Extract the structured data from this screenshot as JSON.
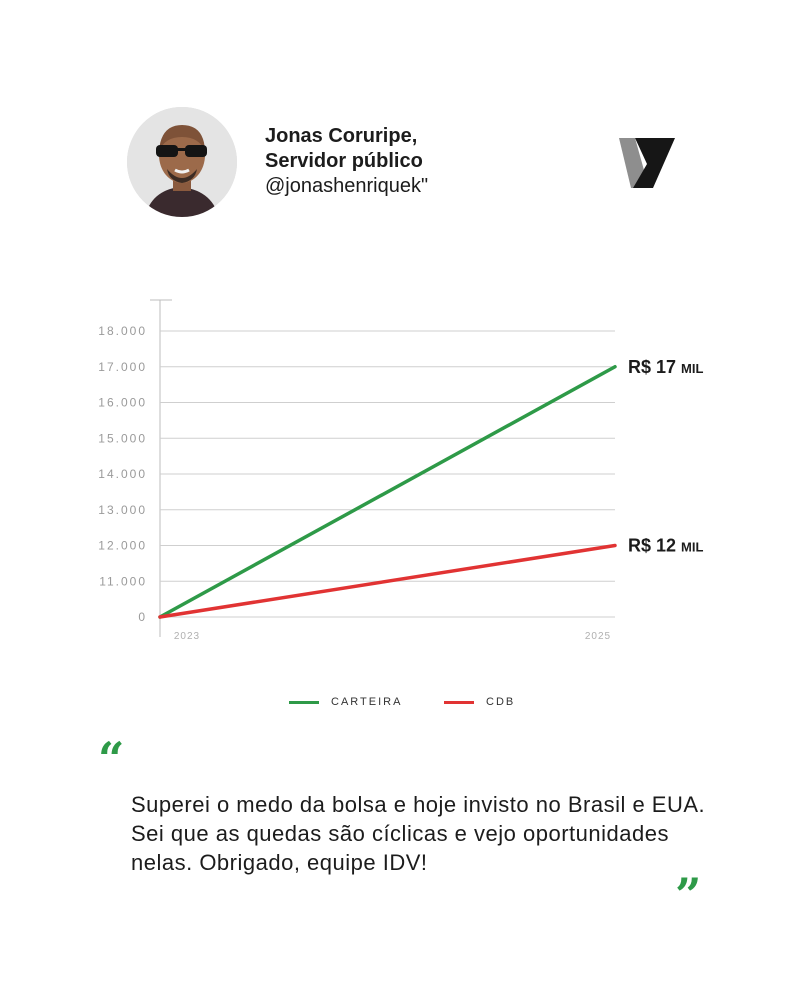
{
  "profile": {
    "name": "Jonas Coruripe,",
    "role": "Servidor público",
    "handle": "@jonashenriquek\""
  },
  "colors": {
    "carteira": "#2e9a48",
    "cdb": "#e13333",
    "grid": "#cfcfcf",
    "axis_text": "#9a9a9a"
  },
  "chart_data": {
    "type": "line",
    "y_ticks": [
      "18.000",
      "17.000",
      "16.000",
      "15.000",
      "14.000",
      "13.000",
      "12.000",
      "11.000",
      "0"
    ],
    "x_ticks": [
      "2023",
      "2025"
    ],
    "series": [
      {
        "name": "CARTEIRA",
        "start": "0",
        "end": "17.000",
        "end_label": "R$ 17",
        "end_label_unit": "MIL"
      },
      {
        "name": "CDB",
        "start": "0",
        "end": "12.000",
        "end_label": "R$ 12",
        "end_label_unit": "MIL"
      }
    ],
    "grid": true,
    "legend_position": "bottom"
  },
  "legend": [
    {
      "label": "CARTEIRA"
    },
    {
      "label": "CDB"
    }
  ],
  "quote": {
    "text": "Superei o medo da bolsa e hoje invisto no Brasil e EUA. Sei que as quedas são cíclicas e vejo oportunidades nelas. Obrigado, equipe IDV!",
    "open_mark": "“",
    "close_mark": "”"
  }
}
